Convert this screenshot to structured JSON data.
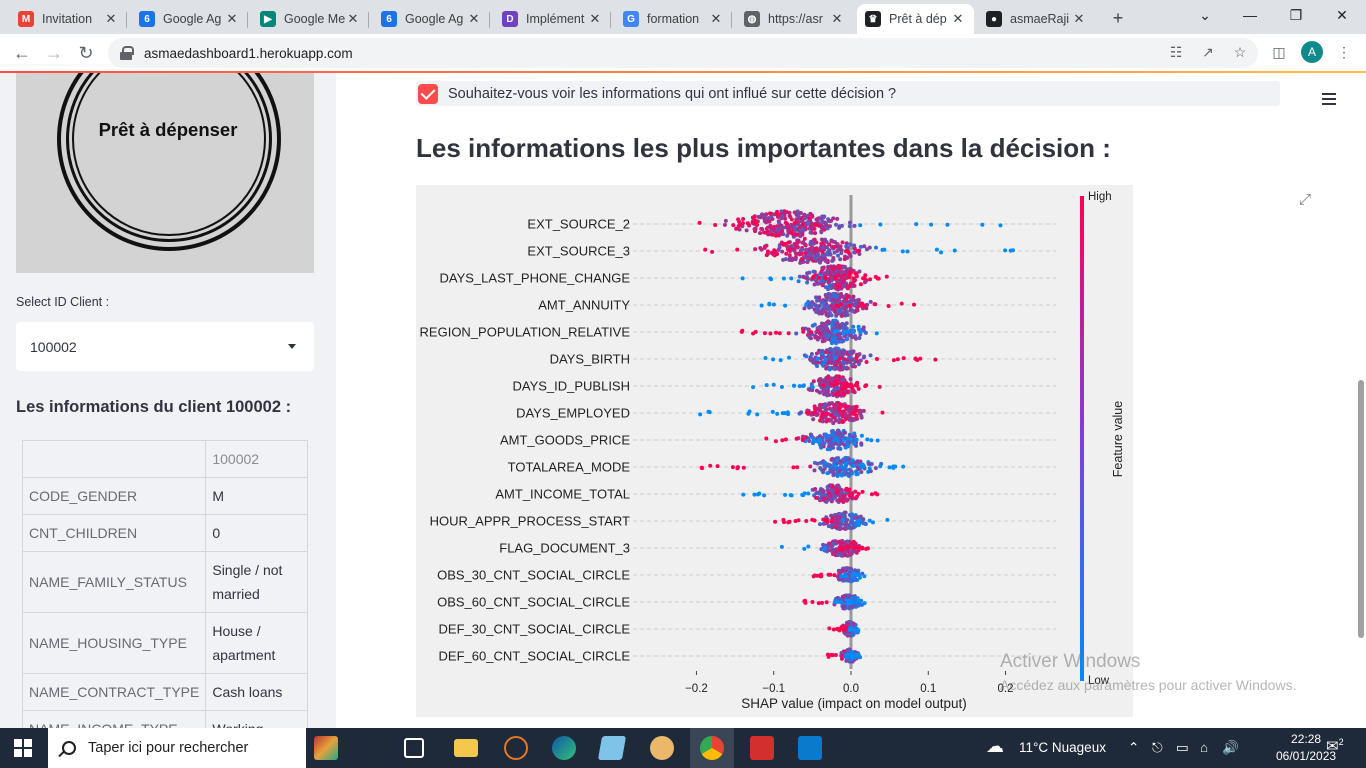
{
  "browser": {
    "tabs": [
      {
        "title": "Invitation",
        "icon": "gmail-icon",
        "color": "#ea4335",
        "glyph": "M"
      },
      {
        "title": "Google Ag",
        "icon": "google-calendar-icon",
        "color": "#1a73e8",
        "glyph": "6"
      },
      {
        "title": "Google Me",
        "icon": "google-meet-icon",
        "color": "#00897b",
        "glyph": "▶"
      },
      {
        "title": "Google Ag",
        "icon": "google-calendar-icon",
        "color": "#1a73e8",
        "glyph": "6"
      },
      {
        "title": "Implément",
        "icon": "implement-icon",
        "color": "#6f42c1",
        "glyph": "D"
      },
      {
        "title": "formation",
        "icon": "google-icon",
        "color": "#4285f4",
        "glyph": "G"
      },
      {
        "title": "https://asr",
        "icon": "globe-icon",
        "color": "#5f6368",
        "glyph": "◍"
      },
      {
        "title": "Prêt à dép",
        "icon": "streamlit-icon",
        "color": "#202124",
        "glyph": "♛"
      },
      {
        "title": "asmaeRaji",
        "icon": "github-icon",
        "color": "#202124",
        "glyph": "●"
      }
    ],
    "new_tab": "+",
    "url": "asmaedashboard1.herokuapp.com",
    "profile_initial": "A"
  },
  "sidebar": {
    "logo_text": "Prêt à dépenser",
    "select_label": "Select ID Client :",
    "selected_client": "100002",
    "client_heading": "Les informations du client 100002 :",
    "table_header": "100002",
    "rows": [
      {
        "key": "CODE_GENDER",
        "value": "M"
      },
      {
        "key": "CNT_CHILDREN",
        "value": "0"
      },
      {
        "key": "NAME_FAMILY_STATUS",
        "value": "Single / not married"
      },
      {
        "key": "NAME_HOUSING_TYPE",
        "value": "House / apartment"
      },
      {
        "key": "NAME_CONTRACT_TYPE",
        "value": "Cash loans"
      },
      {
        "key": "NAME_INCOME_TYPE",
        "value": "Working"
      }
    ]
  },
  "main": {
    "checkbox_label": "Souhaitez-vous voir les informations qui ont influé sur cette décision ?",
    "checkbox_checked": true,
    "heading": "Les informations les plus importantes dans la décision :"
  },
  "chart_data": {
    "type": "scatter",
    "subtype": "shap-beeswarm",
    "title": "",
    "xlabel": "SHAP value (impact on model output)",
    "xlim": [
      -0.22,
      0.22
    ],
    "xticks": [
      "−0.2",
      "−0.1",
      "0.0",
      "0.1",
      "0.2"
    ],
    "xtick_values": [
      -0.2,
      -0.1,
      0.0,
      0.1,
      0.2
    ],
    "colorbar_label": "Feature value",
    "colorbar_high": "High",
    "colorbar_low": "Low",
    "color_high": "#ff0052",
    "color_low": "#008bfb",
    "features": [
      {
        "name": "EXT_SOURCE_2",
        "min": -0.21,
        "max": 0.21,
        "center": -0.08,
        "spread": 0.05,
        "low_side": "right"
      },
      {
        "name": "EXT_SOURCE_3",
        "min": -0.2,
        "max": 0.22,
        "center": -0.05,
        "spread": 0.05,
        "low_side": "right"
      },
      {
        "name": "DAYS_LAST_PHONE_CHANGE",
        "min": -0.15,
        "max": 0.05,
        "center": -0.02,
        "spread": 0.03,
        "low_side": "left"
      },
      {
        "name": "AMT_ANNUITY",
        "min": -0.13,
        "max": 0.09,
        "center": -0.02,
        "spread": 0.03,
        "low_side": "left"
      },
      {
        "name": "REGION_POPULATION_RELATIVE",
        "min": -0.16,
        "max": 0.07,
        "center": -0.02,
        "spread": 0.03,
        "low_side": "right"
      },
      {
        "name": "DAYS_BIRTH",
        "min": -0.14,
        "max": 0.11,
        "center": -0.02,
        "spread": 0.03,
        "low_side": "left"
      },
      {
        "name": "DAYS_ID_PUBLISH",
        "min": -0.13,
        "max": 0.04,
        "center": -0.02,
        "spread": 0.025,
        "low_side": "left"
      },
      {
        "name": "DAYS_EMPLOYED",
        "min": -0.2,
        "max": 0.05,
        "center": -0.02,
        "spread": 0.03,
        "low_side": "left"
      },
      {
        "name": "AMT_GOODS_PRICE",
        "min": -0.17,
        "max": 0.05,
        "center": -0.02,
        "spread": 0.03,
        "low_side": "right"
      },
      {
        "name": "TOTALAREA_MODE",
        "min": -0.2,
        "max": 0.07,
        "center": -0.01,
        "spread": 0.03,
        "low_side": "right"
      },
      {
        "name": "AMT_INCOME_TOTAL",
        "min": -0.15,
        "max": 0.04,
        "center": -0.02,
        "spread": 0.025,
        "low_side": "left"
      },
      {
        "name": "HOUR_APPR_PROCESS_START",
        "min": -0.1,
        "max": 0.06,
        "center": -0.01,
        "spread": 0.02,
        "low_side": "right"
      },
      {
        "name": "FLAG_DOCUMENT_3",
        "min": -0.09,
        "max": 0.03,
        "center": -0.01,
        "spread": 0.02,
        "low_side": "left"
      },
      {
        "name": "OBS_30_CNT_SOCIAL_CIRCLE",
        "min": -0.05,
        "max": 0.02,
        "center": -0.003,
        "spread": 0.012,
        "low_side": "right"
      },
      {
        "name": "OBS_60_CNT_SOCIAL_CIRCLE",
        "min": -0.07,
        "max": 0.02,
        "center": -0.003,
        "spread": 0.012,
        "low_side": "right"
      },
      {
        "name": "DEF_30_CNT_SOCIAL_CIRCLE",
        "min": -0.03,
        "max": 0.02,
        "center": -0.002,
        "spread": 0.008,
        "low_side": "right"
      },
      {
        "name": "DEF_60_CNT_SOCIAL_CIRCLE",
        "min": -0.03,
        "max": 0.015,
        "center": -0.002,
        "spread": 0.008,
        "low_side": "right"
      }
    ]
  },
  "watermark": {
    "line1": "Activer Windows",
    "line2": "Accédez aux paramètres pour activer Windows."
  },
  "taskbar": {
    "search_placeholder": "Taper ici pour rechercher",
    "weather": "11°C  Nuageux",
    "time": "22:28",
    "date": "06/01/2023",
    "notification_count": "2"
  }
}
